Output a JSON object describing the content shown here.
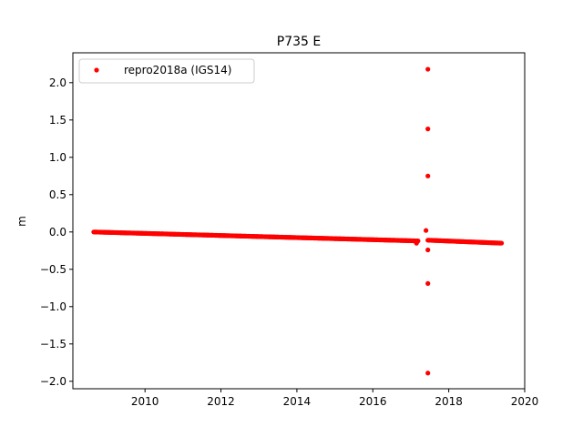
{
  "chart_data": {
    "type": "scatter",
    "title": "P735 E",
    "xlabel": "",
    "ylabel": "m",
    "xlim": [
      2008.1,
      2020.0
    ],
    "ylim": [
      -2.1,
      2.4
    ],
    "xticks": [
      2010,
      2012,
      2014,
      2016,
      2018,
      2020
    ],
    "yticks": [
      -2.0,
      -1.5,
      -1.0,
      -0.5,
      0.0,
      0.5,
      1.0,
      1.5,
      2.0
    ],
    "xtick_labels": [
      "2010",
      "2012",
      "2014",
      "2016",
      "2018",
      "2020"
    ],
    "ytick_labels": [
      "−2.0",
      "−1.5",
      "−1.0",
      "−0.5",
      "0.0",
      "0.5",
      "1.0",
      "1.5",
      "2.0"
    ],
    "legend_position": "top-left",
    "grid": false,
    "series": [
      {
        "name": "repro2018a (IGS14)",
        "color": "#ff0000",
        "marker": "circle",
        "segments": [
          {
            "x_start": 2008.65,
            "x_end": 2017.2,
            "y_start": 0.0,
            "y_end": -0.12,
            "step": 0.02
          },
          {
            "x_start": 2017.45,
            "x_end": 2019.4,
            "y_start": -0.11,
            "y_end": -0.15,
            "step": 0.02
          }
        ],
        "outliers": [
          {
            "x": 2017.45,
            "y": 2.18
          },
          {
            "x": 2017.45,
            "y": 1.38
          },
          {
            "x": 2017.45,
            "y": 0.75
          },
          {
            "x": 2017.4,
            "y": 0.02
          },
          {
            "x": 2017.45,
            "y": -0.24
          },
          {
            "x": 2017.45,
            "y": -0.69
          },
          {
            "x": 2017.45,
            "y": -1.89
          },
          {
            "x": 2017.15,
            "y": -0.15
          }
        ]
      }
    ]
  }
}
